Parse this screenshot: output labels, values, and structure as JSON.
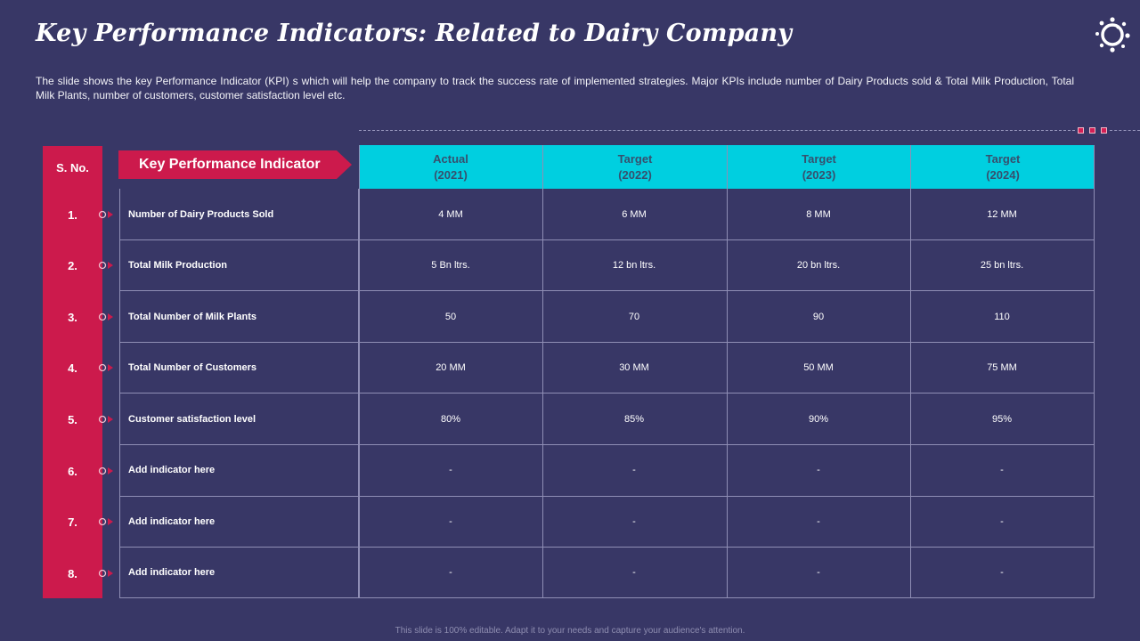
{
  "title": "Key Performance Indicators: Related to Dairy Company",
  "description": "The slide shows the key Performance Indicator (KPI) s which will help the company to track the success rate of implemented strategies. Major KPIs include number of Dairy Products sold & Total Milk Production, Total Milk Plants, number of customers, customer satisfaction level etc.",
  "logo_icon": "gear-sun-icon",
  "colors": {
    "background": "#383766",
    "accent": "#cc1a4c",
    "header": "#00cfe0",
    "header_text": "#36506e"
  },
  "table": {
    "sno_header": "S. No.",
    "kpi_header": "Key Performance Indicator",
    "columns": [
      {
        "line1": "Actual",
        "line2": "(2021)"
      },
      {
        "line1": "Target",
        "line2": "(2022)"
      },
      {
        "line1": "Target",
        "line2": "(2023)"
      },
      {
        "line1": "Target",
        "line2": "(2024)"
      }
    ],
    "rows": [
      {
        "no": "1.",
        "kpi": "Number of Dairy Products Sold",
        "values": [
          "4 MM",
          "6 MM",
          "8 MM",
          "12 MM"
        ]
      },
      {
        "no": "2.",
        "kpi": "Total Milk Production",
        "values": [
          "5 Bn ltrs.",
          "12 bn ltrs.",
          "20 bn ltrs.",
          "25 bn ltrs."
        ]
      },
      {
        "no": "3.",
        "kpi": "Total Number of Milk Plants",
        "values": [
          "50",
          "70",
          "90",
          "110"
        ]
      },
      {
        "no": "4.",
        "kpi": "Total Number of Customers",
        "values": [
          "20 MM",
          "30 MM",
          "50 MM",
          "75 MM"
        ]
      },
      {
        "no": "5.",
        "kpi": "Customer satisfaction  level",
        "values": [
          "80%",
          "85%",
          "90%",
          "95%"
        ]
      },
      {
        "no": "6.",
        "kpi": "Add indicator  here",
        "values": [
          "-",
          "-",
          "-",
          "-"
        ]
      },
      {
        "no": "7.",
        "kpi": "Add indicator  here",
        "values": [
          "-",
          "-",
          "-",
          "-"
        ]
      },
      {
        "no": "8.",
        "kpi": "Add indicator  here",
        "values": [
          "-",
          "-",
          "-",
          "-"
        ]
      }
    ]
  },
  "footer": "This slide is 100% editable. Adapt it to your needs and capture your audience's attention."
}
